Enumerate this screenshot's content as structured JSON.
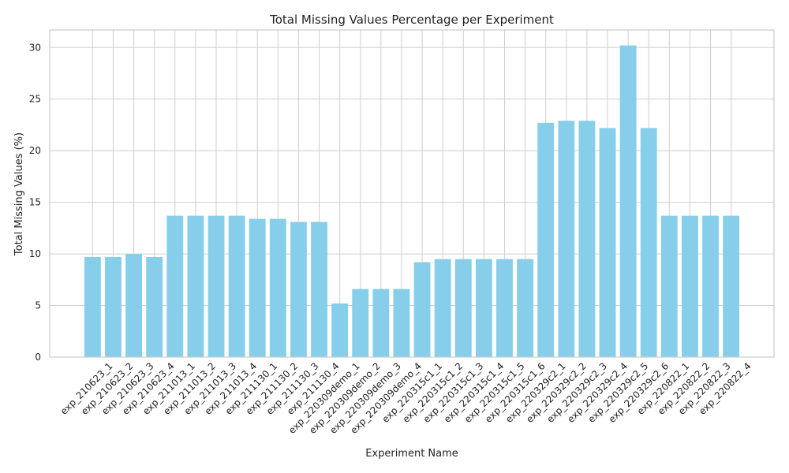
{
  "chart_data": {
    "type": "bar",
    "title": "Total Missing Values Percentage per Experiment",
    "xlabel": "Experiment Name",
    "ylabel": "Total Missing Values (%)",
    "ylim": [
      0,
      31.7
    ],
    "yticks": [
      0,
      5,
      10,
      15,
      20,
      25,
      30
    ],
    "grid": true,
    "bar_color": "#87CEEB",
    "categories": [
      "exp_210623_1",
      "exp_210623_2",
      "exp_210623_3",
      "exp_210623_4",
      "exp_211013_1",
      "exp_211013_2",
      "exp_211013_3",
      "exp_211013_4",
      "exp_211130_1",
      "exp_211130_2",
      "exp_211130_3",
      "exp_211130_4",
      "exp_220309demo_1",
      "exp_220309demo_2",
      "exp_220309demo_3",
      "exp_220309demo_4",
      "exp_220315c1_1",
      "exp_220315c1_2",
      "exp_220315c1_3",
      "exp_220315c1_4",
      "exp_220315c1_5",
      "exp_220315c1_6",
      "exp_220329c2_1",
      "exp_220329c2_2",
      "exp_220329c2_3",
      "exp_220329c2_4",
      "exp_220329c2_5",
      "exp_220329c2_6",
      "exp_220822_1",
      "exp_220822_2",
      "exp_220822_3",
      "exp_220822_4"
    ],
    "values": [
      9.7,
      9.7,
      10.0,
      9.7,
      13.7,
      13.7,
      13.7,
      13.7,
      13.4,
      13.4,
      13.1,
      13.1,
      5.2,
      6.6,
      6.6,
      6.6,
      9.2,
      9.5,
      9.5,
      9.5,
      9.5,
      9.5,
      22.7,
      22.9,
      22.9,
      22.2,
      30.2,
      22.2,
      13.7,
      13.7,
      13.7,
      13.7
    ]
  }
}
